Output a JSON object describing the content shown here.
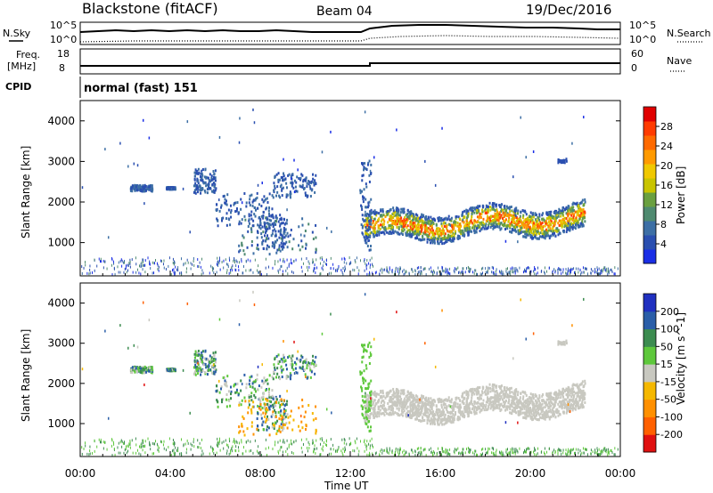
{
  "header": {
    "station": "Blackstone (fitACF)",
    "beam": "Beam 04",
    "date": "19/Dec/2016"
  },
  "noise_panel": {
    "left_label": "N.Sky",
    "right_label": "N.Search",
    "left_ticks": [
      "10^5",
      "10^0"
    ],
    "right_ticks": [
      "10^5",
      "10^0"
    ]
  },
  "freq_panel": {
    "left_label_line1": "Freq.",
    "left_label_line2": "[MHz]",
    "right_label": "Nave",
    "left_ticks": [
      "18",
      "8"
    ],
    "right_ticks": [
      "60",
      "0"
    ]
  },
  "cpid_panel": {
    "label": "CPID",
    "text": "normal (fast) 151"
  },
  "x_axis": {
    "label": "Time UT",
    "ticks": [
      "00:00",
      "04:00",
      "08:00",
      "12:00",
      "16:00",
      "20:00",
      "00:00"
    ]
  },
  "colors": {
    "power_scale": [
      "#1a2ee6",
      "#2a4fb0",
      "#3d6fa5",
      "#4f8a70",
      "#6aa040",
      "#c9c400",
      "#f0c800",
      "#ff9a00",
      "#ff6a00",
      "#ff3b00",
      "#e00000"
    ],
    "velocity_scale": [
      "#e01010",
      "#ff6000",
      "#ff9000",
      "#f5b800",
      "#c8c8c0",
      "#5ec83c",
      "#3c8c50",
      "#2a5ea8",
      "#2030c0"
    ]
  },
  "chart_data": [
    {
      "type": "heatmap",
      "title": "",
      "ylabel": "Slant Range [km]",
      "xlabel": "",
      "y_ticks": [
        "1000",
        "2000",
        "3000",
        "4000"
      ],
      "colorbar_label": "Power [dB]",
      "colorbar_ticks": [
        "4",
        "8",
        "12",
        "16",
        "20",
        "24",
        "28"
      ],
      "xlim": [
        "00:00",
        "24:00"
      ],
      "ylim": [
        180,
        4500
      ]
    },
    {
      "type": "heatmap",
      "title": "",
      "ylabel": "Slant Range [km]",
      "xlabel": "Time UT",
      "y_ticks": [
        "1000",
        "2000",
        "3000",
        "4000"
      ],
      "colorbar_label": "Velocity [m s^-1]",
      "colorbar_ticks": [
        "200",
        "100",
        "50",
        "15",
        "-15",
        "-50",
        "-100",
        "-200"
      ],
      "xlim": [
        "00:00",
        "24:00"
      ],
      "ylim": [
        180,
        4500
      ]
    }
  ]
}
